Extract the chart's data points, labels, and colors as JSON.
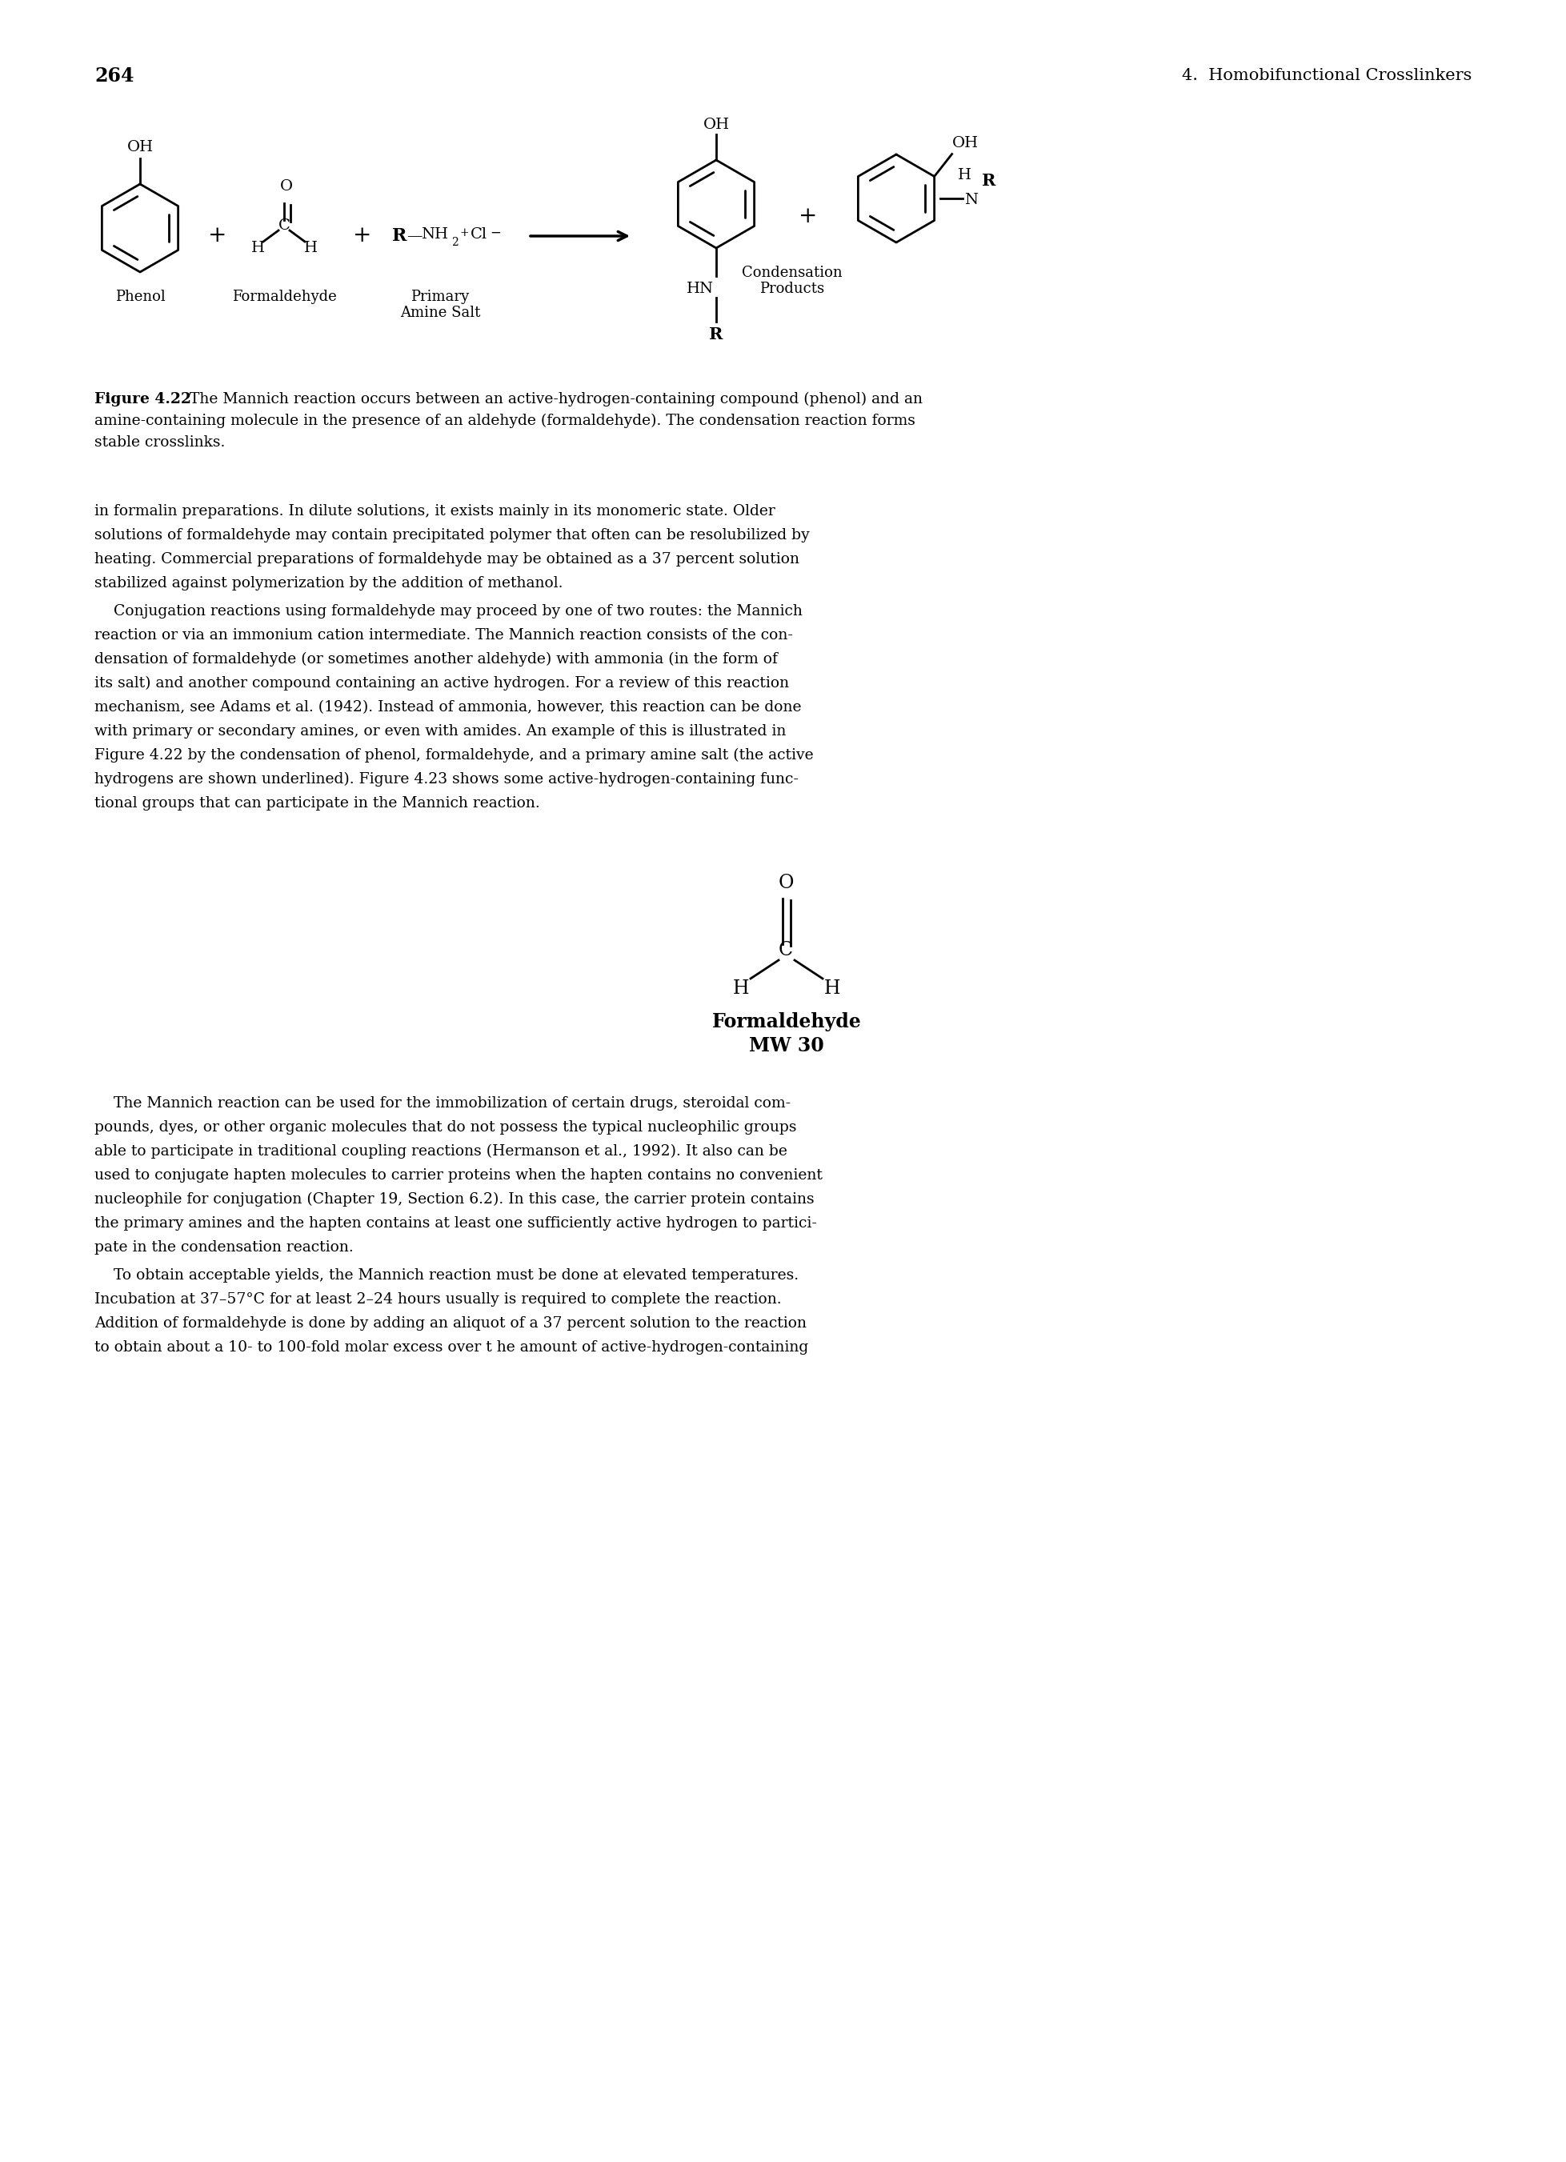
{
  "page_number": "264",
  "chapter_header": "4.  Homobifunctional Crosslinkers",
  "figure_caption_bold": "Figure 4.22",
  "figure_caption_text": "  The Mannich reaction occurs between an active-hydrogen-containing compound (phenol) and an amine-containing molecule in the presence of an aldehyde (formaldehyde). The condensation reaction forms stable crosslinks.",
  "body_text_1_lines": [
    "in formalin preparations. In dilute solutions, it exists mainly in its monomeric state. Older",
    "solutions of formaldehyde may contain precipitated polymer that often can be resolubilized by",
    "heating. Commercial preparations of formaldehyde may be obtained as a 37 percent solution",
    "stabilized against polymerization by the addition of methanol."
  ],
  "body_text_2_lines": [
    "    Conjugation reactions using formaldehyde may proceed by one of two routes: the Mannich",
    "reaction or via an immonium cation intermediate. The Mannich reaction consists of the con-",
    "densation of formaldehyde (or sometimes another aldehyde) with ammonia (in the form of",
    "its salt) and another compound containing an active hydrogen. For a review of this reaction",
    "mechanism, see Adams et al. (1942). Instead of ammonia, however, this reaction can be done",
    "with primary or secondary amines, or even with amides. An example of this is illustrated in",
    "Figure 4.22 by the condensation of phenol, formaldehyde, and a primary amine salt (the active",
    "hydrogens are shown underlined). Figure 4.23 shows some active-hydrogen-containing func-",
    "tional groups that can participate in the Mannich reaction."
  ],
  "body_text_3_lines": [
    "    The Mannich reaction can be used for the immobilization of certain drugs, steroidal com-",
    "pounds, dyes, or other organic molecules that do not possess the typical nucleophilic groups",
    "able to participate in traditional coupling reactions (Hermanson et al., 1992). It also can be",
    "used to conjugate hapten molecules to carrier proteins when the hapten contains no convenient",
    "nucleophile for conjugation (Chapter 19, Section 6.2). In this case, the carrier protein contains",
    "the primary amines and the hapten contains at least one sufficiently active hydrogen to partici-",
    "pate in the condensation reaction."
  ],
  "body_text_4_lines": [
    "    To obtain acceptable yields, the Mannich reaction must be done at elevated temperatures.",
    "Incubation at 37–57°C for at least 2–24 hours usually is required to complete the reaction.",
    "Addition of formaldehyde is done by adding an aliquot of a 37 percent solution to the reaction",
    "to obtain about a 10- to 100-fold molar excess over t he amount of active-hydrogen-containing"
  ],
  "background_color": "#ffffff",
  "text_color": "#000000"
}
